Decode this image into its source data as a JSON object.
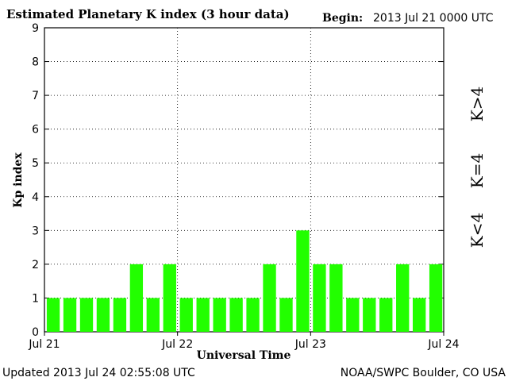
{
  "header": {
    "title": "Estimated Planetary K index (3 hour data)",
    "begin_label": "Begin:",
    "begin_value": "2013 Jul 21 0000 UTC"
  },
  "footer": {
    "updated": "Updated 2013 Jul 24 02:55:08 UTC",
    "source": "NOAA/SWPC Boulder, CO USA"
  },
  "legend": {
    "high": {
      "label": "K>4",
      "color": "#ff3b1f"
    },
    "equal": {
      "label": "K=4",
      "color": "#ffd21a"
    },
    "low": {
      "label": "K<4",
      "color": "#33ee22"
    }
  },
  "chart_data": {
    "type": "bar",
    "ylabel": "Kp index",
    "xlabel": "Universal Time",
    "ylim": [
      0,
      9
    ],
    "yticks": [
      0,
      1,
      2,
      3,
      4,
      5,
      6,
      7,
      8,
      9
    ],
    "xtick_labels": [
      "Jul 21",
      "Jul 22",
      "Jul 23",
      "Jul 24"
    ],
    "grid": true,
    "bar_color": "#22ff00",
    "values": [
      1,
      1,
      1,
      1,
      1,
      2,
      1,
      2,
      1,
      1,
      1,
      1,
      1,
      2,
      1,
      3,
      2,
      2,
      1,
      1,
      1,
      2,
      1,
      2
    ]
  }
}
